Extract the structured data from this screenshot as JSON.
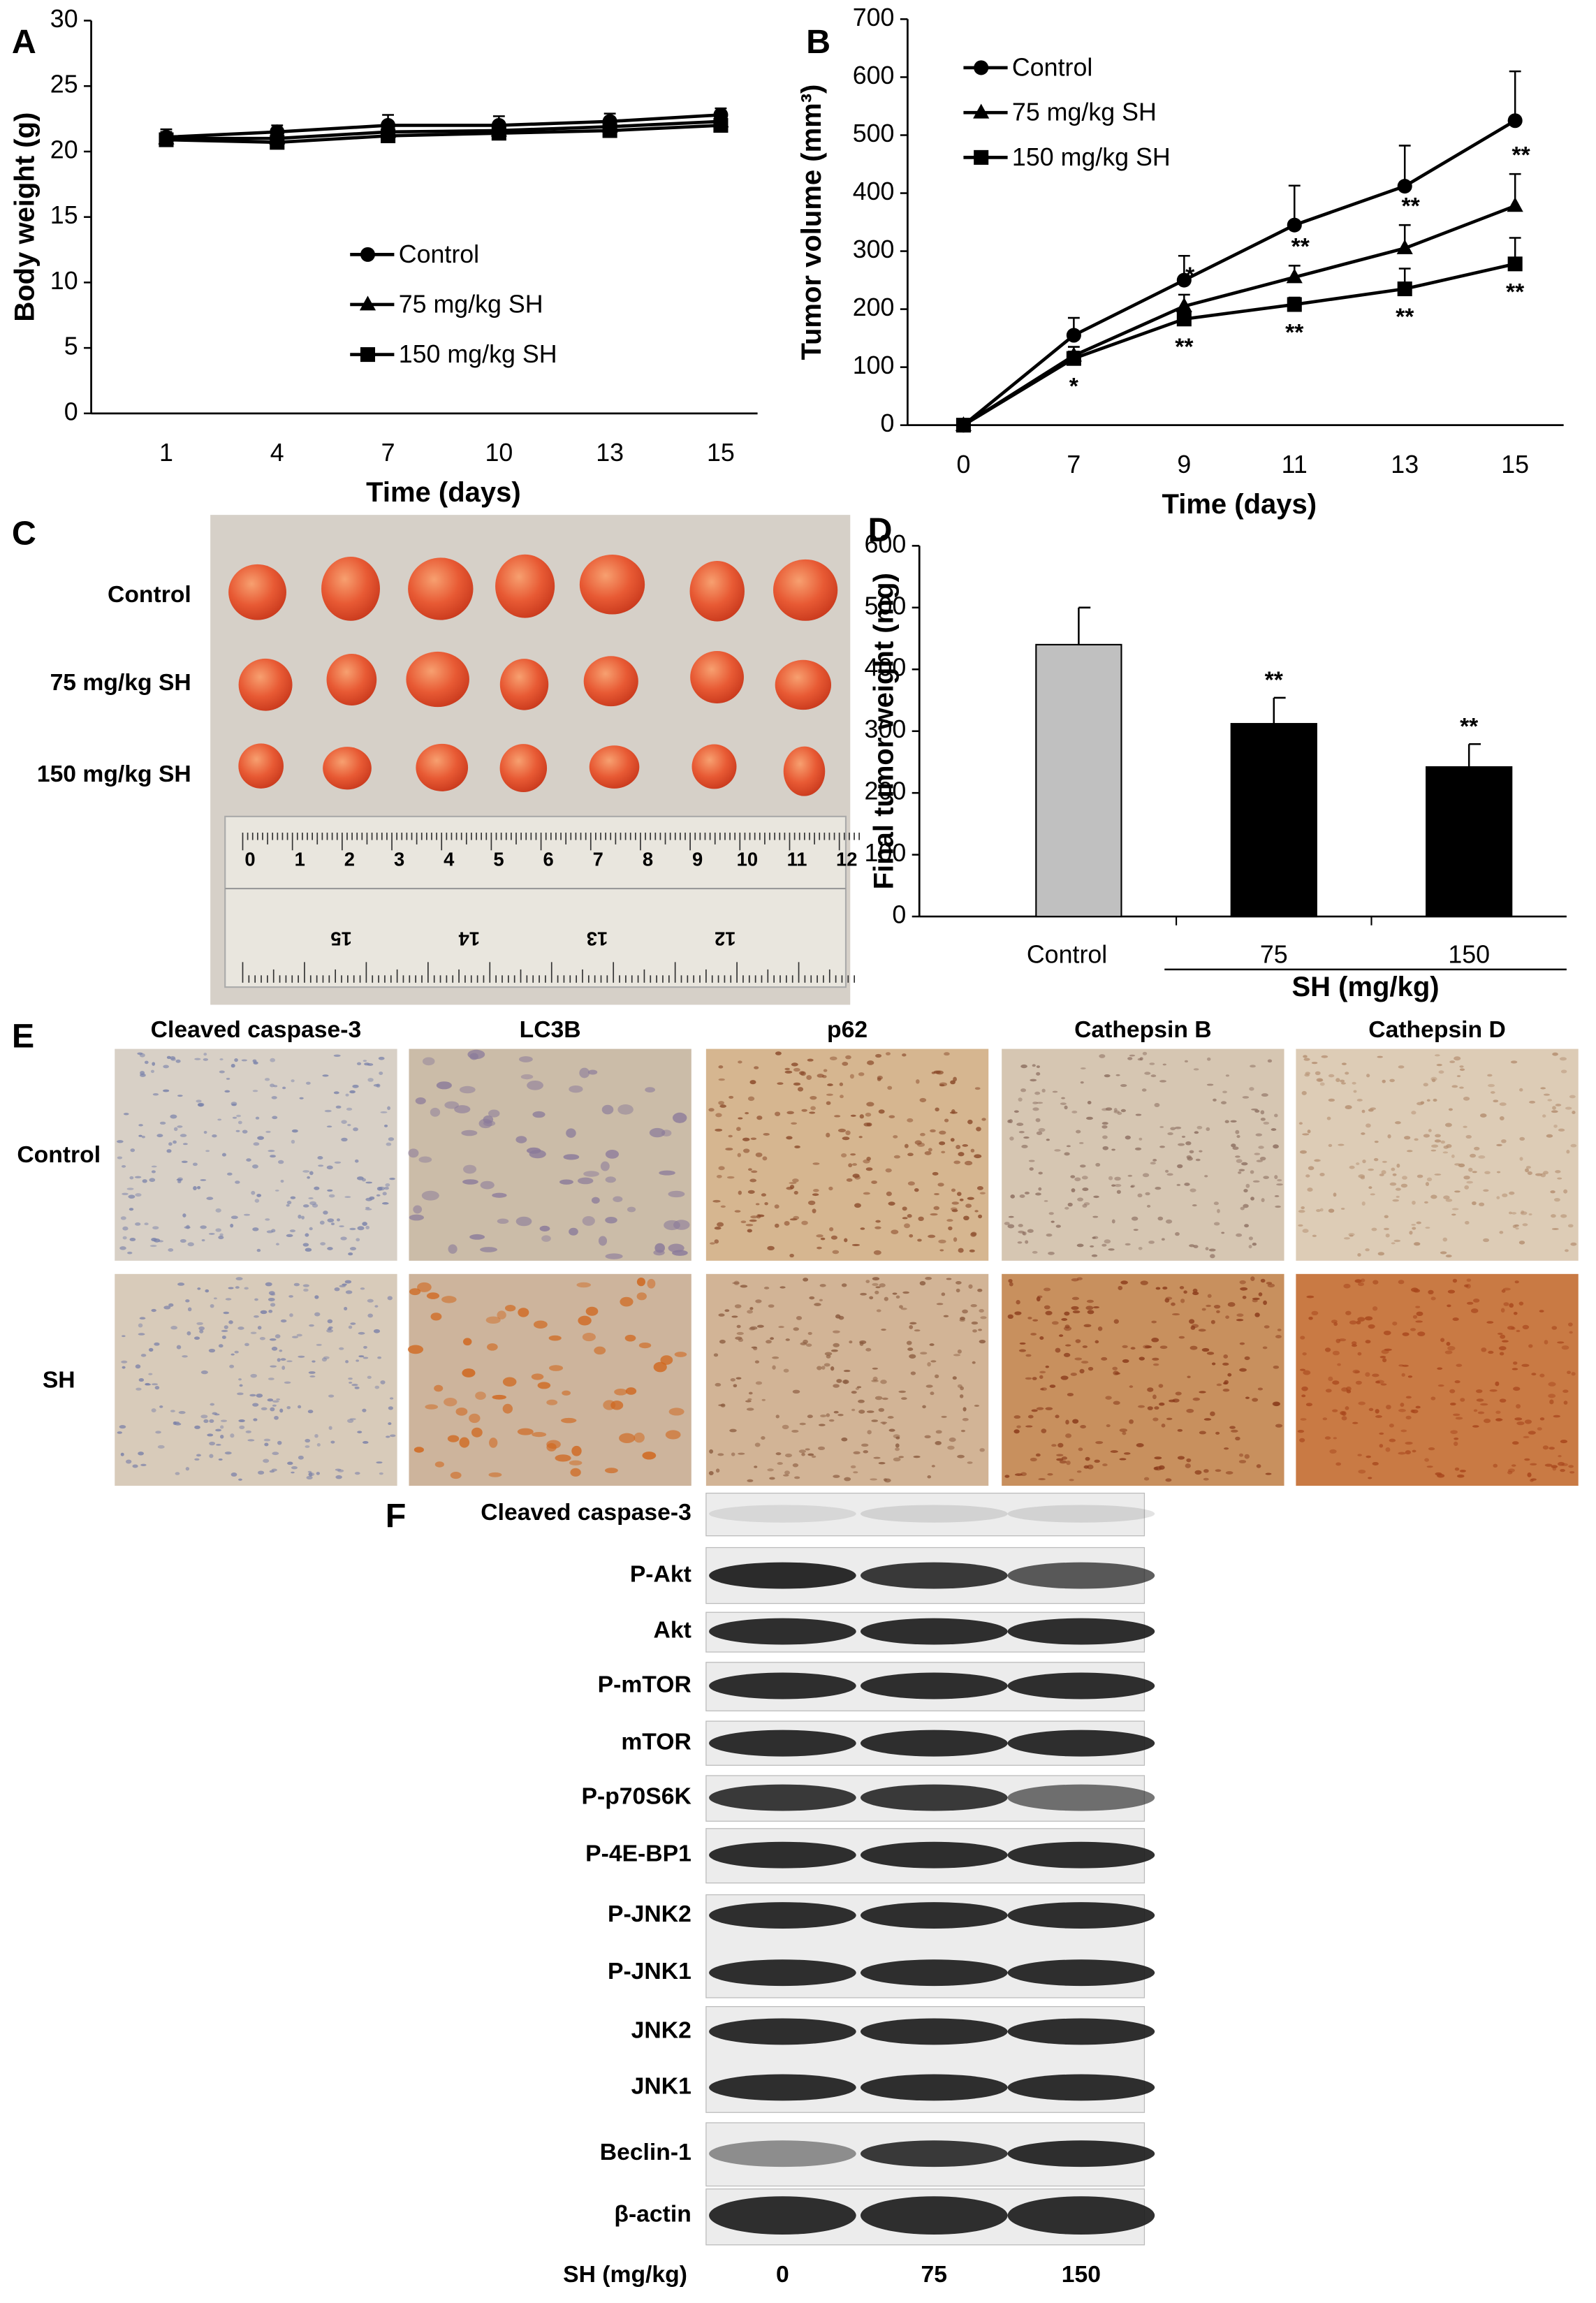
{
  "panel_labels": [
    "A",
    "B",
    "C",
    "D",
    "E",
    "F"
  ],
  "chart_data": [
    {
      "type": "line",
      "y_label": "Body weight (g)",
      "x_label": "Time (days)",
      "categories": [
        "1",
        "4",
        "7",
        "10",
        "13",
        "15"
      ],
      "ylim": [
        0,
        30
      ],
      "yticks": [
        0,
        5,
        10,
        15,
        20,
        25,
        30
      ],
      "legend": "center",
      "series": [
        {
          "name": "Control",
          "color": "#000000",
          "marker": "circle",
          "values": [
            21.1,
            21.5,
            22.0,
            22.0,
            22.3,
            22.8
          ],
          "errors": [
            0.6,
            0.5,
            0.8,
            0.7,
            0.6,
            0.5
          ]
        },
        {
          "name": "75 mg/kg SH",
          "color": "#000000",
          "marker": "triangle",
          "values": [
            21.0,
            21.0,
            21.5,
            21.6,
            21.9,
            22.3
          ],
          "errors": [
            0.5,
            0.5,
            0.6,
            0.6,
            0.6,
            0.5
          ]
        },
        {
          "name": "150 mg/kg SH",
          "color": "#000000",
          "marker": "square",
          "values": [
            20.9,
            20.7,
            21.2,
            21.4,
            21.6,
            22.0
          ],
          "errors": [
            0.4,
            0.4,
            0.5,
            0.5,
            0.5,
            0.4
          ]
        }
      ]
    },
    {
      "type": "line",
      "y_label": "Tumor volume (mm³)",
      "x_label": "Time (days)",
      "categories": [
        "0",
        "7",
        "9",
        "11",
        "13",
        "15"
      ],
      "ylim": [
        0,
        700
      ],
      "yticks": [
        0,
        100,
        200,
        300,
        400,
        500,
        600,
        700
      ],
      "legend": "upper left",
      "series": [
        {
          "name": "Control",
          "color": "#000000",
          "marker": "circle",
          "values": [
            0,
            155,
            250,
            345,
            412,
            525
          ],
          "errors": [
            0,
            30,
            42,
            68,
            70,
            85
          ]
        },
        {
          "name": "75 mg/kg SH",
          "color": "#000000",
          "marker": "triangle",
          "values": [
            0,
            120,
            205,
            255,
            305,
            378
          ],
          "errors": [
            0,
            15,
            20,
            20,
            40,
            55
          ],
          "significance": [
            null,
            null,
            "*",
            "**",
            "**",
            "**"
          ]
        },
        {
          "name": "150 mg/kg SH",
          "color": "#000000",
          "marker": "square",
          "values": [
            0,
            115,
            183,
            208,
            235,
            278
          ],
          "errors": [
            0,
            12,
            15,
            12,
            35,
            45
          ],
          "significance": [
            null,
            "*",
            "**",
            "**",
            "**",
            "**"
          ]
        }
      ]
    },
    {
      "type": "bar",
      "y_label": "Final tumor weight (mg)",
      "categories": [
        "Control",
        "75",
        "150"
      ],
      "group_label": "SH (mg/kg)",
      "values": [
        440,
        312,
        242
      ],
      "errors": [
        60,
        42,
        37
      ],
      "colors": [
        "#c0c0c0",
        "#000000",
        "#000000"
      ],
      "significance": [
        null,
        "**",
        "**"
      ],
      "ylim": [
        0,
        600
      ],
      "yticks": [
        0,
        100,
        200,
        300,
        400,
        500,
        600
      ]
    }
  ],
  "photo": {
    "rows": [
      "Control",
      "75 mg/kg SH",
      "150 mg/kg SH"
    ],
    "ruler_top": [
      "0",
      "1",
      "2",
      "3",
      "4",
      "5",
      "6",
      "7",
      "8",
      "9",
      "10",
      "11",
      "12"
    ],
    "ruler_bottom": [
      "15",
      "14",
      "13",
      "12"
    ]
  },
  "ihc": {
    "columns": [
      "Cleaved caspase-3",
      "LC3B",
      "p62",
      "Cathepsin B",
      "Cathepsin D"
    ],
    "rows": [
      "Control",
      "SH"
    ]
  },
  "blot": {
    "rows": [
      "Cleaved caspase-3",
      "P-Akt",
      "Akt",
      "P-mTOR",
      "mTOR",
      "P-p70S6K",
      "P-4E-BP1",
      "P-JNK2",
      "P-JNK1",
      "JNK2",
      "JNK1",
      "Beclin-1",
      "β-actin"
    ],
    "lane_axis_label": "SH (mg/kg)",
    "lanes": [
      "0",
      "75",
      "150"
    ]
  }
}
